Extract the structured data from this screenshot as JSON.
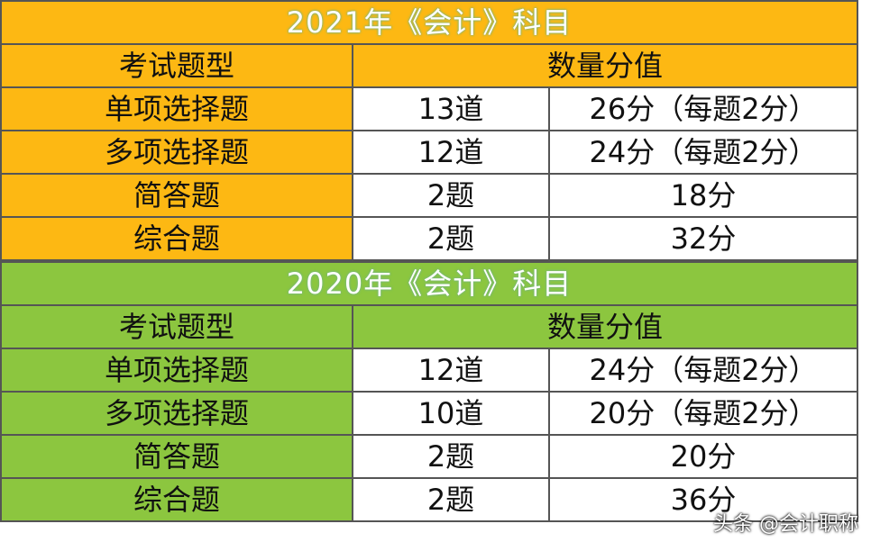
{
  "tables": [
    {
      "title": "2021年《会计》科目",
      "header": [
        "考试题型",
        "数量分值"
      ],
      "rows": [
        [
          "单项选择题",
          "13道",
          "26分（每题2分）"
        ],
        [
          "多项选择题",
          "12道",
          "24分（每题2分）"
        ],
        [
          "简答题",
          "2题",
          "18分"
        ],
        [
          "综合题",
          "2题",
          "32分"
        ]
      ]
    },
    {
      "title": "2020年《会计》科目",
      "header": [
        "考试题型",
        "数量分值"
      ],
      "rows": [
        [
          "单项选择题",
          "12道",
          "24分（每题2分）"
        ],
        [
          "多项选择题",
          "10道",
          "20分（每题2分）"
        ],
        [
          "简答题",
          "2题",
          "20分"
        ],
        [
          "综合题",
          "2题",
          "36分"
        ]
      ]
    }
  ],
  "watermark": "头条 @会计职称"
}
